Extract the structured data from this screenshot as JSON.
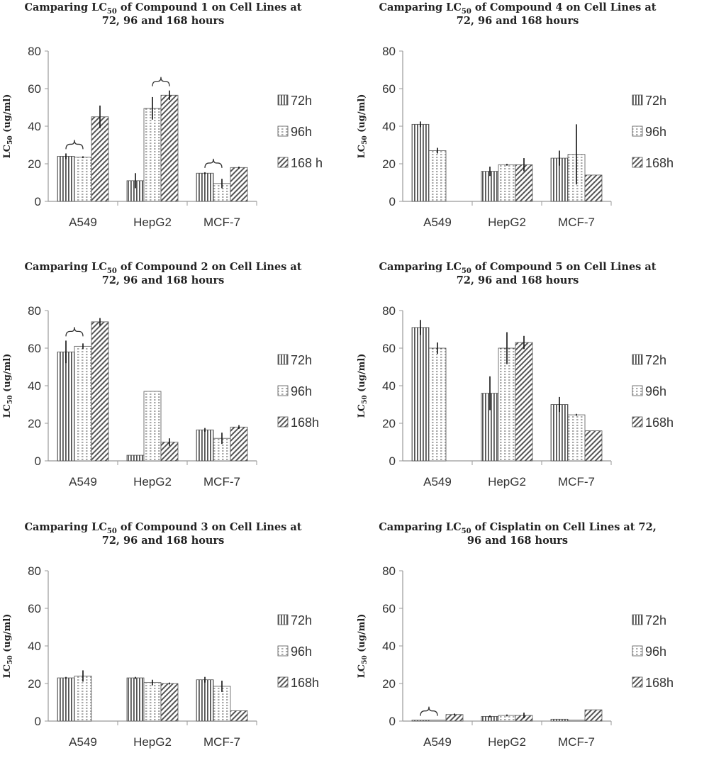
{
  "colors": {
    "bar_fill": "#ffffff",
    "bar_stroke": "#555555",
    "pattern_ink": "#555555",
    "axis": "#999999"
  },
  "chart_data": [
    {
      "type": "bar",
      "title_line1_pre": "Camparing LC",
      "title_sub": "50",
      "title_line1_post": " of Compound 1 on Cell Lines at",
      "title_line2": "72, 96 and 168 hours",
      "ylabel_pre": "LC",
      "ylabel_sub": "50",
      "ylabel_post": " (ug/ml)",
      "ylim": [
        0,
        80
      ],
      "yticks": [
        "0",
        "20",
        "40",
        "60",
        "80"
      ],
      "categories": [
        "A549",
        "HepG2",
        "MCF-7"
      ],
      "series": [
        {
          "name": "72h",
          "pattern": "vertical",
          "values": [
            24,
            11,
            15
          ],
          "errors": [
            1.5,
            4,
            0.5
          ]
        },
        {
          "name": "96h",
          "pattern": "dots",
          "values": [
            23.5,
            49.5,
            9.5
          ],
          "errors": [
            0.5,
            6,
            2.5
          ]
        },
        {
          "name": "168 h",
          "pattern": "diagonal",
          "values": [
            45,
            56.5,
            18
          ],
          "errors": [
            6,
            2.5,
            0.5
          ]
        }
      ],
      "brackets": [
        [
          0,
          0,
          1
        ],
        [
          1,
          1,
          2
        ],
        [
          2,
          0,
          1
        ]
      ]
    },
    {
      "type": "bar",
      "title_line1_pre": "Camparing LC",
      "title_sub": "50",
      "title_line1_post": " of Compound 4 on Cell Lines at",
      "title_line2": "72, 96 and 168 hours",
      "ylabel_pre": "LC",
      "ylabel_sub": "50",
      "ylabel_post": " (ug/ml)",
      "ylim": [
        0,
        80
      ],
      "yticks": [
        "0",
        "20",
        "40",
        "60",
        "80"
      ],
      "categories": [
        "A549",
        "HepG2",
        "MCF-7"
      ],
      "series": [
        {
          "name": "72h",
          "pattern": "vertical",
          "values": [
            41,
            16,
            23
          ],
          "errors": [
            1.5,
            2.5,
            4
          ]
        },
        {
          "name": "96h",
          "pattern": "dots",
          "values": [
            27,
            19.5,
            25
          ],
          "errors": [
            1.5,
            0.5,
            16
          ]
        },
        {
          "name": "168h",
          "pattern": "diagonal",
          "values": [
            0,
            19.5,
            14
          ],
          "errors": [
            0,
            3.5,
            0
          ]
        }
      ],
      "brackets": []
    },
    {
      "type": "bar",
      "title_line1_pre": "Camparing LC",
      "title_sub": "50",
      "title_line1_post": " of Compound 2 on Cell Lines at",
      "title_line2": "72, 96 and 168 hours",
      "ylabel_pre": "LC",
      "ylabel_sub": "50",
      "ylabel_post": " (ug/ml)",
      "ylim": [
        0,
        80
      ],
      "yticks": [
        "0",
        "20",
        "40",
        "60",
        "80"
      ],
      "categories": [
        "A549",
        "HepG2",
        "MCF-7"
      ],
      "series": [
        {
          "name": "72h",
          "pattern": "vertical",
          "values": [
            58,
            3,
            16.5
          ],
          "errors": [
            6,
            0,
            1
          ]
        },
        {
          "name": "96h",
          "pattern": "dots",
          "values": [
            61,
            37,
            12
          ],
          "errors": [
            1.5,
            0,
            3
          ]
        },
        {
          "name": "168h",
          "pattern": "diagonal",
          "values": [
            74,
            10,
            18
          ],
          "errors": [
            2,
            2,
            1
          ]
        }
      ],
      "brackets": [
        [
          0,
          0,
          1
        ]
      ]
    },
    {
      "type": "bar",
      "title_line1_pre": "Camparing LC",
      "title_sub": "50",
      "title_line1_post": " of Compound 5 on Cell Lines at",
      "title_line2": "72, 96 and 168 hours",
      "ylabel_pre": "LC",
      "ylabel_sub": "50",
      "ylabel_post": " (ug/ml)",
      "ylim": [
        0,
        80
      ],
      "yticks": [
        "0",
        "20",
        "40",
        "60",
        "80"
      ],
      "categories": [
        "A549",
        "HepG2",
        "MCF-7"
      ],
      "series": [
        {
          "name": "72h",
          "pattern": "vertical",
          "values": [
            71,
            36,
            30
          ],
          "errors": [
            4,
            9,
            4
          ]
        },
        {
          "name": "96h",
          "pattern": "dots",
          "values": [
            60,
            60,
            24.5
          ],
          "errors": [
            3,
            8.5,
            0.5
          ]
        },
        {
          "name": "168h",
          "pattern": "diagonal",
          "values": [
            0,
            63,
            16
          ],
          "errors": [
            0,
            3.5,
            0
          ]
        }
      ],
      "brackets": []
    },
    {
      "type": "bar",
      "title_line1_pre": "Camparing LC",
      "title_sub": "50",
      "title_line1_post": " of Compound 3 on Cell Lines at",
      "title_line2": "72, 96 and 168 hours",
      "ylabel_pre": "LC",
      "ylabel_sub": "50",
      "ylabel_post": " (ug/ml)",
      "ylim": [
        0,
        80
      ],
      "yticks": [
        "0",
        "20",
        "40",
        "60",
        "80"
      ],
      "categories": [
        "A549",
        "HepG2",
        "MCF-7"
      ],
      "series": [
        {
          "name": "72h",
          "pattern": "vertical",
          "values": [
            23,
            23,
            22
          ],
          "errors": [
            0.5,
            0.5,
            1.5
          ]
        },
        {
          "name": "96h",
          "pattern": "dots",
          "values": [
            24,
            20.5,
            18.5
          ],
          "errors": [
            3,
            1.5,
            3
          ]
        },
        {
          "name": "168h",
          "pattern": "diagonal",
          "values": [
            0,
            20,
            5.5
          ],
          "errors": [
            0,
            0.5,
            0
          ]
        }
      ],
      "brackets": []
    },
    {
      "type": "bar",
      "title_line1_pre": "Camparing LC",
      "title_sub": "50",
      "title_line1_post": " of Cisplatin on Cell Lines at 72,",
      "title_line2": "96 and 168 hours",
      "ylabel_pre": "LC",
      "ylabel_sub": "50",
      "ylabel_post": " (ug/ml)",
      "ylim": [
        0,
        80
      ],
      "yticks": [
        "0",
        "20",
        "40",
        "60",
        "80"
      ],
      "categories": [
        "A549",
        "HepG2",
        "MCF-7"
      ],
      "series": [
        {
          "name": "72h",
          "pattern": "vertical",
          "values": [
            0.5,
            2.5,
            1
          ],
          "errors": [
            0,
            0.5,
            0
          ]
        },
        {
          "name": "96h",
          "pattern": "dots",
          "values": [
            0.5,
            3,
            0.5
          ],
          "errors": [
            0,
            0.5,
            0
          ]
        },
        {
          "name": "168h",
          "pattern": "diagonal",
          "values": [
            3.5,
            3,
            6
          ],
          "errors": [
            0.5,
            1.5,
            0
          ]
        }
      ],
      "brackets": [
        [
          0,
          0,
          1
        ]
      ]
    }
  ]
}
